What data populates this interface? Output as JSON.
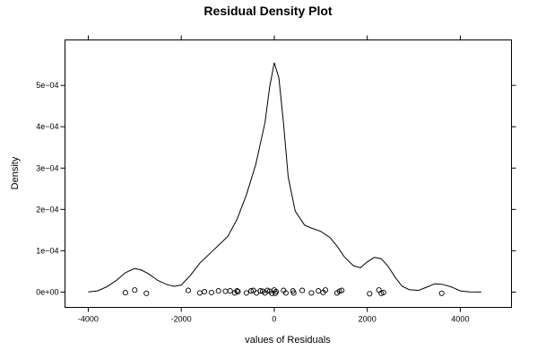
{
  "chart_data": {
    "type": "line",
    "title": "Residual Density Plot",
    "xlabel": "values of Residuals",
    "ylabel": "Density",
    "xlim": [
      -4500,
      5100
    ],
    "ylim": [
      -3.7e-05,
      0.00061
    ],
    "x_ticks": [
      {
        "value": -4000,
        "label": "-4000"
      },
      {
        "value": -2000,
        "label": "-2000"
      },
      {
        "value": 0,
        "label": "0"
      },
      {
        "value": 2000,
        "label": "2000"
      },
      {
        "value": 4000,
        "label": "4000"
      }
    ],
    "y_ticks": [
      {
        "value": 0,
        "label": "0e+00"
      },
      {
        "value": 0.0001,
        "label": "1e−04"
      },
      {
        "value": 0.0002,
        "label": "2e−04"
      },
      {
        "value": 0.0003,
        "label": "3e−04"
      },
      {
        "value": 0.0004,
        "label": "4e−04"
      },
      {
        "value": 0.0005,
        "label": "5e−04"
      }
    ],
    "grid": false,
    "series": [
      {
        "x": [
          -4000,
          -3800,
          -3600,
          -3400,
          -3200,
          -3000,
          -2850,
          -2700,
          -2500,
          -2300,
          -2150,
          -2000,
          -1800,
          -1600,
          -1350,
          -1200,
          -1000,
          -800,
          -600,
          -400,
          -200,
          -100,
          0,
          100,
          200,
          300,
          450,
          650,
          800,
          1000,
          1200,
          1350,
          1500,
          1700,
          1850,
          2000,
          2150,
          2300,
          2450,
          2600,
          2750,
          2900,
          3100,
          3300,
          3450,
          3600,
          3800,
          4000,
          4200,
          4450
        ],
        "y": [
          5e-07,
          3e-06,
          1.3e-05,
          2.8e-05,
          4.7e-05,
          5.7e-05,
          5.3e-05,
          4.4e-05,
          2.8e-05,
          1.8e-05,
          1.4e-05,
          1.7e-05,
          4.1e-05,
          7e-05,
          9.7e-05,
          0.000113,
          0.000135,
          0.000176,
          0.000235,
          0.000308,
          0.00041,
          0.000496,
          0.000555,
          0.000518,
          0.000407,
          0.000278,
          0.000196,
          0.000162,
          0.000155,
          0.000147,
          0.000132,
          0.000111,
          8.6e-05,
          6.4e-05,
          5.9e-05,
          7.3e-05,
          8.4e-05,
          8.1e-05,
          6.2e-05,
          3.6e-05,
          1.4e-05,
          6e-06,
          4e-06,
          1.3e-05,
          2e-05,
          1.9e-05,
          1.3e-05,
          3e-06,
          5e-07,
          2e-07
        ]
      }
    ],
    "rug_points": [
      {
        "x": -3200,
        "y": -1.5e-06
      },
      {
        "x": -3000,
        "y": 5e-06
      },
      {
        "x": -2750,
        "y": -3e-06
      },
      {
        "x": -1850,
        "y": 4e-06
      },
      {
        "x": -1600,
        "y": -2e-06
      },
      {
        "x": -1500,
        "y": 1e-06
      },
      {
        "x": -1350,
        "y": -1e-06
      },
      {
        "x": -1200,
        "y": 3e-06
      },
      {
        "x": -1050,
        "y": 2e-06
      },
      {
        "x": -950,
        "y": 3e-06
      },
      {
        "x": -850,
        "y": -2e-06
      },
      {
        "x": -800,
        "y": 3e-06
      },
      {
        "x": -780,
        "y": 1e-06
      },
      {
        "x": -600,
        "y": -2e-06
      },
      {
        "x": -500,
        "y": 3e-06
      },
      {
        "x": -450,
        "y": 4e-06
      },
      {
        "x": -380,
        "y": -2e-06
      },
      {
        "x": -300,
        "y": 3e-06
      },
      {
        "x": -250,
        "y": 2e-06
      },
      {
        "x": -200,
        "y": -2e-06
      },
      {
        "x": -150,
        "y": 4e-06
      },
      {
        "x": -100,
        "y": 2e-06
      },
      {
        "x": -50,
        "y": -3e-06
      },
      {
        "x": 0,
        "y": 5e-06
      },
      {
        "x": 20,
        "y": -3e-06
      },
      {
        "x": 40,
        "y": 1e-06
      },
      {
        "x": 200,
        "y": 4e-06
      },
      {
        "x": 250,
        "y": -2e-06
      },
      {
        "x": 400,
        "y": 3e-06
      },
      {
        "x": 420,
        "y": -2e-06
      },
      {
        "x": 600,
        "y": 4e-06
      },
      {
        "x": 800,
        "y": -2e-06
      },
      {
        "x": 950,
        "y": 3e-06
      },
      {
        "x": 1050,
        "y": -1e-06
      },
      {
        "x": 1100,
        "y": 5e-06
      },
      {
        "x": 1350,
        "y": -2e-06
      },
      {
        "x": 1400,
        "y": 2e-06
      },
      {
        "x": 1450,
        "y": 4e-06
      },
      {
        "x": 2050,
        "y": -4e-06
      },
      {
        "x": 2250,
        "y": 5e-06
      },
      {
        "x": 2300,
        "y": -3e-06
      },
      {
        "x": 2350,
        "y": -1e-06
      },
      {
        "x": 3600,
        "y": -3e-06
      }
    ]
  }
}
